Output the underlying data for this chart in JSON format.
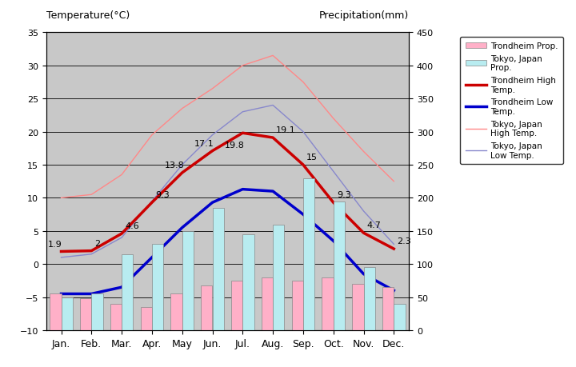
{
  "months": [
    "Jan.",
    "Feb.",
    "Mar.",
    "Apr.",
    "May",
    "Jun.",
    "Jul.",
    "Aug.",
    "Sep.",
    "Oct.",
    "Nov.",
    "Dec."
  ],
  "trondheim_high": [
    1.9,
    2.0,
    4.6,
    9.3,
    13.8,
    17.1,
    19.8,
    19.1,
    15.0,
    9.3,
    4.7,
    2.3
  ],
  "trondheim_low": [
    -4.5,
    -4.5,
    -3.5,
    1.0,
    5.5,
    9.3,
    11.3,
    11.0,
    7.5,
    3.5,
    -1.5,
    -4.0
  ],
  "tokyo_high": [
    10.0,
    10.5,
    13.5,
    19.5,
    23.5,
    26.5,
    30.0,
    31.5,
    27.5,
    22.0,
    17.0,
    12.5
  ],
  "tokyo_low": [
    1.0,
    1.5,
    4.0,
    9.5,
    15.0,
    19.5,
    23.0,
    24.0,
    20.0,
    14.0,
    8.0,
    3.0
  ],
  "trondheim_precip": [
    55,
    48,
    40,
    35,
    55,
    68,
    75,
    80,
    75,
    80,
    70,
    65
  ],
  "tokyo_precip": [
    50,
    55,
    115,
    130,
    150,
    185,
    145,
    160,
    230,
    195,
    95,
    40
  ],
  "trondheim_high_labels": [
    "1.9",
    "2",
    "4.6",
    "9.3",
    "13.8",
    "17.1",
    "19.8",
    "19.1",
    "15",
    "9.3",
    "4.7",
    "2.3"
  ],
  "title_left": "Temperature(°C)",
  "title_right": "Precipitation(mm)",
  "temp_ylim": [
    -10,
    35
  ],
  "precip_ylim": [
    0,
    450
  ],
  "background_color": "#c8c8c8",
  "trondheim_precip_color": "#ffb0c8",
  "tokyo_precip_color": "#b8ecf0",
  "trondheim_high_color": "#cc0000",
  "trondheim_low_color": "#0000cc",
  "tokyo_high_color": "#ff8888",
  "tokyo_low_color": "#8888cc",
  "grid_color": "#000000"
}
